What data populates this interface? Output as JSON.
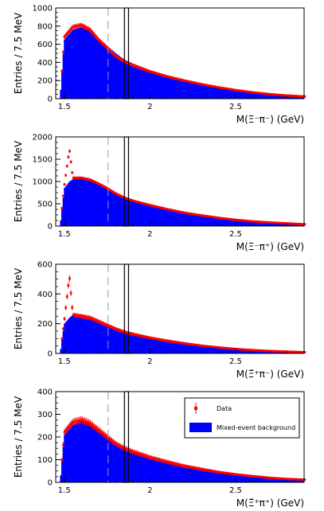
{
  "chart_data": [
    {
      "type": "histogram",
      "ylabel": "Entries / 7.5 MeV",
      "xlabel": "M(Ξ⁻π⁻) (GeV)",
      "xlim": [
        1.45,
        2.9
      ],
      "ylim": [
        0,
        1000
      ],
      "yticks": [
        0,
        200,
        400,
        600,
        800,
        1000
      ],
      "xticks": [
        1.5,
        2,
        2.5
      ],
      "xtick_labels": [
        "1.5",
        "2",
        "2.5"
      ],
      "series": [
        {
          "name": "Data",
          "color": "#ff0000",
          "x": [
            1.475,
            1.5,
            1.55,
            1.6,
            1.65,
            1.7,
            1.75,
            1.8,
            1.85,
            1.9,
            2.0,
            2.1,
            2.2,
            2.3,
            2.4,
            2.5,
            2.6,
            2.7,
            2.8,
            2.9
          ],
          "y": [
            0,
            680,
            790,
            810,
            760,
            650,
            560,
            470,
            410,
            370,
            300,
            245,
            200,
            160,
            125,
            95,
            70,
            50,
            35,
            25
          ]
        },
        {
          "name": "Mixed-event background",
          "color": "#0000ff",
          "x": [
            1.475,
            1.5,
            1.55,
            1.6,
            1.65,
            1.7,
            1.75,
            1.8,
            1.85,
            1.9,
            2.0,
            2.1,
            2.2,
            2.3,
            2.4,
            2.5,
            2.6,
            2.7,
            2.8,
            2.9
          ],
          "y": [
            0,
            650,
            760,
            790,
            750,
            660,
            580,
            500,
            430,
            385,
            310,
            250,
            200,
            160,
            125,
            95,
            70,
            50,
            35,
            25
          ]
        }
      ]
    },
    {
      "type": "histogram",
      "ylabel": "Entries / 7.5 MeV",
      "xlabel": "M(Ξ⁻π⁺) (GeV)",
      "xlim": [
        1.45,
        2.9
      ],
      "ylim": [
        0,
        2000
      ],
      "yticks": [
        0,
        500,
        1000,
        1500,
        2000
      ],
      "xticks": [
        1.5,
        2,
        2.5
      ],
      "xtick_labels": [
        "1.5",
        "2",
        "2.5"
      ],
      "series": [
        {
          "name": "Data",
          "color": "#ff0000",
          "x": [
            1.475,
            1.5,
            1.53,
            1.55,
            1.6,
            1.65,
            1.7,
            1.75,
            1.8,
            1.85,
            1.9,
            2.0,
            2.1,
            2.2,
            2.3,
            2.4,
            2.5,
            2.6,
            2.7,
            2.8,
            2.9
          ],
          "y": [
            0,
            900,
            1720,
            1080,
            1080,
            1040,
            950,
            850,
            730,
            640,
            570,
            470,
            380,
            300,
            240,
            185,
            140,
            105,
            80,
            60,
            40
          ]
        },
        {
          "name": "Mixed-event background",
          "color": "#0000ff",
          "x": [
            1.475,
            1.5,
            1.53,
            1.55,
            1.6,
            1.65,
            1.7,
            1.75,
            1.8,
            1.85,
            1.9,
            2.0,
            2.1,
            2.2,
            2.3,
            2.4,
            2.5,
            2.6,
            2.7,
            2.8,
            2.9
          ],
          "y": [
            0,
            850,
            1000,
            1050,
            1080,
            1050,
            970,
            870,
            750,
            650,
            575,
            470,
            380,
            300,
            240,
            185,
            140,
            105,
            80,
            60,
            40
          ]
        }
      ]
    },
    {
      "type": "histogram",
      "ylabel": "Entries / 7.5 MeV",
      "xlabel": "M(Ξ̄⁺π⁻) (GeV)",
      "xlim": [
        1.45,
        2.9
      ],
      "ylim": [
        0,
        600
      ],
      "yticks": [
        0,
        200,
        400,
        600
      ],
      "xticks": [
        1.5,
        2,
        2.5
      ],
      "xtick_labels": [
        "1.5",
        "2",
        "2.5"
      ],
      "series": [
        {
          "name": "Data",
          "color": "#ff0000",
          "x": [
            1.475,
            1.5,
            1.53,
            1.55,
            1.6,
            1.65,
            1.7,
            1.75,
            1.8,
            1.85,
            1.9,
            2.0,
            2.1,
            2.2,
            2.3,
            2.4,
            2.5,
            2.6,
            2.7,
            2.8,
            2.9
          ],
          "y": [
            0,
            220,
            520,
            260,
            250,
            240,
            215,
            190,
            165,
            145,
            130,
            105,
            85,
            68,
            52,
            40,
            30,
            22,
            16,
            12,
            8
          ]
        },
        {
          "name": "Mixed-event background",
          "color": "#0000ff",
          "x": [
            1.475,
            1.5,
            1.53,
            1.55,
            1.6,
            1.65,
            1.7,
            1.75,
            1.8,
            1.85,
            1.9,
            2.0,
            2.1,
            2.2,
            2.3,
            2.4,
            2.5,
            2.6,
            2.7,
            2.8,
            2.9
          ],
          "y": [
            0,
            200,
            240,
            260,
            260,
            245,
            220,
            195,
            170,
            150,
            133,
            107,
            86,
            68,
            52,
            40,
            30,
            22,
            16,
            12,
            8
          ]
        }
      ]
    },
    {
      "type": "histogram",
      "ylabel": "Entries / 7.5 MeV",
      "xlabel": "M(Ξ̄⁺π⁺) (GeV)",
      "xlim": [
        1.45,
        2.9
      ],
      "ylim": [
        0,
        400
      ],
      "yticks": [
        0,
        100,
        200,
        300,
        400
      ],
      "xticks": [
        1.5,
        2,
        2.5
      ],
      "xtick_labels": [
        "1.5",
        "2",
        "2.5"
      ],
      "series": [
        {
          "name": "Data",
          "color": "#ff0000",
          "x": [
            1.475,
            1.5,
            1.55,
            1.6,
            1.65,
            1.7,
            1.75,
            1.8,
            1.85,
            1.9,
            2.0,
            2.1,
            2.2,
            2.3,
            2.4,
            2.5,
            2.6,
            2.7,
            2.8,
            2.9
          ],
          "y": [
            0,
            220,
            265,
            275,
            260,
            230,
            200,
            170,
            150,
            135,
            110,
            90,
            72,
            58,
            45,
            35,
            27,
            20,
            15,
            12
          ]
        },
        {
          "name": "Mixed-event background",
          "color": "#0000ff",
          "x": [
            1.475,
            1.5,
            1.55,
            1.6,
            1.65,
            1.7,
            1.75,
            1.8,
            1.85,
            1.9,
            2.0,
            2.1,
            2.2,
            2.3,
            2.4,
            2.5,
            2.6,
            2.7,
            2.8,
            2.9
          ],
          "y": [
            0,
            210,
            255,
            270,
            258,
            232,
            204,
            175,
            155,
            139,
            112,
            91,
            73,
            58,
            45,
            35,
            27,
            20,
            15,
            12
          ]
        }
      ]
    }
  ],
  "reference_lines": {
    "dashed_x": 1.756,
    "box_x_left": 1.851,
    "box_x_right": 1.875,
    "dashed_color": "#999999",
    "box_color": "#000000"
  },
  "legend": {
    "panel": 3,
    "placement": "top-right",
    "entries": [
      {
        "label": "Data",
        "color": "#ff0000",
        "kind": "marker"
      },
      {
        "label": "Mixed-event background",
        "color": "#0000ff",
        "kind": "fill"
      }
    ]
  }
}
